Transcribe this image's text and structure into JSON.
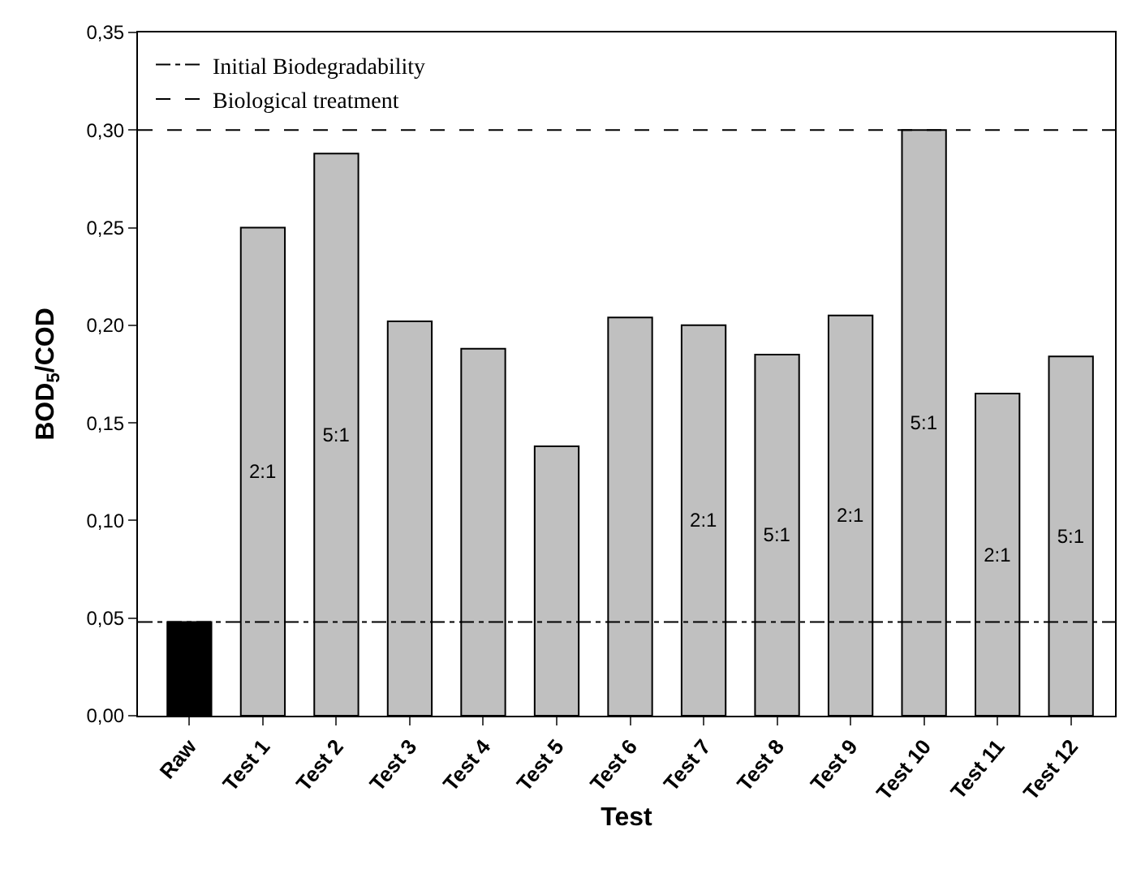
{
  "chart_data": {
    "type": "bar",
    "xlabel": "Test",
    "ylabel": "BOD$_{5}$/COD",
    "categories": [
      "Raw",
      "Test 1",
      "Test 2",
      "Test 3",
      "Test 4",
      "Test 5",
      "Test 6",
      "Test 7",
      "Test 8",
      "Test 9",
      "Test 10",
      "Test 11",
      "Test 12"
    ],
    "values": [
      0.048,
      0.25,
      0.288,
      0.202,
      0.188,
      0.138,
      0.204,
      0.2,
      0.185,
      0.205,
      0.3,
      0.165,
      0.184
    ],
    "colors": [
      "#000000",
      "#c0c0c0",
      "#c0c0c0",
      "#c0c0c0",
      "#c0c0c0",
      "#c0c0c0",
      "#c0c0c0",
      "#c0c0c0",
      "#c0c0c0",
      "#c0c0c0",
      "#c0c0c0",
      "#c0c0c0",
      "#c0c0c0"
    ],
    "ylim": [
      0,
      0.35
    ],
    "yticks": [
      {
        "value": 0,
        "label": "0,00"
      },
      {
        "value": 0.05,
        "label": "0,05"
      },
      {
        "value": 0.1,
        "label": "0,10"
      },
      {
        "value": 0.15,
        "label": "0,15"
      },
      {
        "value": 0.2,
        "label": "0,20"
      },
      {
        "value": 0.25,
        "label": "0,25"
      },
      {
        "value": 0.3,
        "label": "0,30"
      },
      {
        "value": 0.35,
        "label": "0,35"
      }
    ],
    "ref_lines": [
      {
        "axis": "y",
        "value": 0.048,
        "label": "Initial Biodegradability",
        "color": "#000000",
        "line_style": "dashdot"
      },
      {
        "axis": "y",
        "value": 0.3,
        "label": "Biological treatment",
        "color": "#000000",
        "line_style": "dashed"
      }
    ],
    "value_labels": [
      null,
      "2:1",
      "5:1",
      null,
      null,
      null,
      null,
      "2:1",
      "5:1",
      "2:1",
      "5:1",
      "2:1",
      "5:1"
    ],
    "legend": "top left"
  }
}
